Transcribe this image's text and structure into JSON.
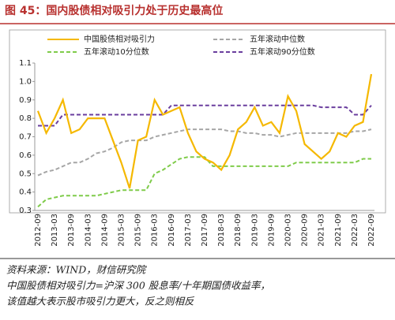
{
  "chart_data": {
    "type": "line",
    "title": "图 45：国内股债相对吸引力处于历史最高位",
    "categories": [
      "2012-09",
      null,
      "2013-03",
      null,
      "2013-09",
      null,
      "2014-03",
      null,
      "2014-09",
      null,
      "2015-03",
      null,
      "2015-09",
      null,
      "2016-03",
      null,
      "2016-09",
      null,
      "2017-03",
      null,
      "2017-09",
      null,
      "2018-03",
      null,
      "2018-09",
      null,
      "2019-03",
      null,
      "2019-09",
      null,
      "2020-03",
      null,
      "2020-09",
      null,
      "2021-03",
      null,
      "2021-09",
      null,
      "2022-03",
      null,
      "2022-09"
    ],
    "series": [
      {
        "name": "中国股债相对吸引力",
        "color": "#f5b800",
        "style": "solid",
        "values": [
          0.84,
          0.72,
          0.8,
          0.9,
          0.72,
          0.74,
          0.8,
          0.8,
          0.8,
          0.68,
          0.56,
          0.42,
          0.68,
          0.7,
          0.9,
          0.82,
          0.84,
          0.86,
          0.72,
          0.62,
          0.58,
          0.56,
          0.52,
          0.6,
          0.74,
          0.78,
          0.86,
          0.76,
          0.78,
          0.72,
          0.92,
          0.84,
          0.66,
          0.62,
          0.58,
          0.62,
          0.72,
          0.7,
          0.76,
          0.78,
          1.04
        ]
      },
      {
        "name": "五年滚动中位数",
        "color": "#a6a6a6",
        "style": "dashed",
        "values": [
          0.49,
          0.51,
          0.52,
          0.54,
          0.56,
          0.56,
          0.58,
          0.61,
          0.62,
          0.64,
          0.67,
          0.68,
          0.68,
          0.68,
          0.7,
          0.71,
          0.72,
          0.73,
          0.74,
          0.74,
          0.74,
          0.74,
          0.74,
          0.73,
          0.73,
          0.72,
          0.72,
          0.71,
          0.71,
          0.7,
          0.71,
          0.72,
          0.72,
          0.72,
          0.72,
          0.72,
          0.72,
          0.72,
          0.73,
          0.73,
          0.74
        ]
      },
      {
        "name": "五年滚动10分位数",
        "color": "#7fcb4a",
        "style": "dashed",
        "values": [
          0.32,
          0.36,
          0.37,
          0.38,
          0.38,
          0.38,
          0.38,
          0.38,
          0.39,
          0.4,
          0.41,
          0.41,
          0.41,
          0.41,
          0.5,
          0.52,
          0.55,
          0.58,
          0.59,
          0.59,
          0.59,
          0.54,
          0.54,
          0.54,
          0.54,
          0.54,
          0.54,
          0.54,
          0.54,
          0.54,
          0.54,
          0.56,
          0.56,
          0.56,
          0.56,
          0.56,
          0.56,
          0.56,
          0.56,
          0.58,
          0.58
        ]
      },
      {
        "name": "五年滚动90分位数",
        "color": "#6a3e9e",
        "style": "dashed",
        "values": [
          0.76,
          0.76,
          0.76,
          0.82,
          0.82,
          0.82,
          0.82,
          0.82,
          0.82,
          0.82,
          0.82,
          0.82,
          0.82,
          0.82,
          0.82,
          0.82,
          0.87,
          0.87,
          0.87,
          0.87,
          0.87,
          0.87,
          0.87,
          0.87,
          0.87,
          0.87,
          0.87,
          0.87,
          0.87,
          0.87,
          0.87,
          0.87,
          0.87,
          0.87,
          0.86,
          0.86,
          0.86,
          0.86,
          0.82,
          0.82,
          0.87
        ]
      }
    ],
    "ylim": [
      0.3,
      1.1
    ],
    "yticks": [
      0.3,
      0.4,
      0.5,
      0.6,
      0.7,
      0.8,
      0.9,
      {
        "value": 1,
        "label": "1.0"
      },
      1.1
    ],
    "legend": "top",
    "source": "资料来源：WIND，财信研究院",
    "notes": [
      "中国股债相对吸引力=沪深 300 股息率/十年期国债收益率，",
      "该值越大表示股市吸引力更大，反之则相反"
    ]
  }
}
